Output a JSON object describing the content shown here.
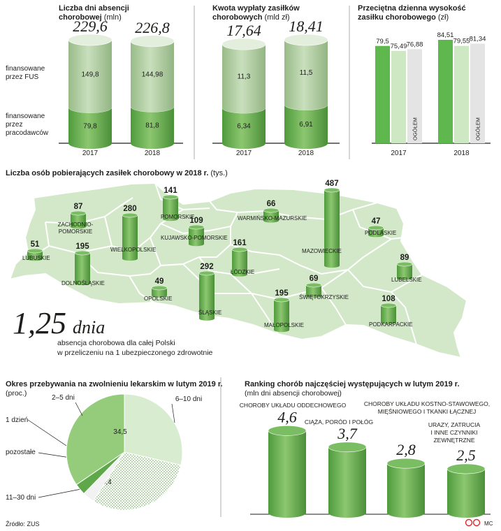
{
  "source": "Źródło: ZUS",
  "credit": "MC",
  "panel_days": {
    "title1": "Liczba dni absencji",
    "title2": "chorobowej",
    "unit": "(mln)",
    "label_fus": [
      "finansowane",
      "przez FUS"
    ],
    "label_employer": [
      "finansowane",
      "przez",
      "pracodawców"
    ]
  },
  "panel_amount": {
    "title1": "Kwota wypłaty zasiłków",
    "title2": "chorobowych",
    "unit": "(mld zł)"
  },
  "panel_daily": {
    "title1": "Przeciętna dzienna wysokość",
    "title2": "zasiłku chorobowego",
    "unit": "(zł)",
    "ogolem": "OGÓŁEM"
  },
  "map_panel": {
    "title": "Liczba osób pobierających zasiłek chorobowy w 2018 r.",
    "unit": "(tys.)",
    "headline_value": "1,25",
    "headline_unit": "dnia",
    "headline_text1": "absencja chorobowa dla całej Polski",
    "headline_text2": "w przeliczeniu na 1 ubezpieczonego zdrowotnie"
  },
  "pie_panel": {
    "title": "Okres przebywania na zwolnieniu lekarskim w lutym 2019 r.",
    "unit": "(proc.)"
  },
  "ranking_panel": {
    "title": "Ranking chorób najczęściej występujących w lutym 2019 r.",
    "unit": "(mln dni absencji chorobowej)"
  },
  "chart_data": [
    {
      "type": "bar",
      "stacked": true,
      "title": "Liczba dni absencji chorobowej (mln)",
      "categories": [
        "2017",
        "2018"
      ],
      "totals": [
        "229,6",
        "226,8"
      ],
      "series": [
        {
          "name": "finansowane przez pracodawców",
          "values": [
            79.8,
            81.8
          ],
          "labels": [
            "79,8",
            "81,8"
          ],
          "color": "#5fa84a"
        },
        {
          "name": "finansowane przez FUS",
          "values": [
            149.8,
            144.98
          ],
          "labels": [
            "149,8",
            "144,98"
          ],
          "color": "#a9c99a"
        }
      ]
    },
    {
      "type": "bar",
      "stacked": true,
      "title": "Kwota wypłaty zasiłków chorobowych (mld zł)",
      "categories": [
        "2017",
        "2018"
      ],
      "totals": [
        "17,64",
        "18,41"
      ],
      "series": [
        {
          "name": "finansowane przez pracodawców",
          "values": [
            6.34,
            6.91
          ],
          "labels": [
            "6,34",
            "6,91"
          ],
          "color": "#5fa84a"
        },
        {
          "name": "finansowane przez FUS",
          "values": [
            11.3,
            11.5
          ],
          "labels": [
            "11,3",
            "11,5"
          ],
          "color": "#a9c99a"
        }
      ]
    },
    {
      "type": "bar",
      "title": "Przeciętna dzienna wysokość zasiłku chorobowego (zł)",
      "categories": [
        "2017",
        "2018"
      ],
      "series": [
        {
          "values": [
            79.5,
            84.51
          ],
          "labels": [
            "79,5",
            "84,51"
          ],
          "color": "#5fb84d"
        },
        {
          "values": [
            75.49,
            79.55
          ],
          "labels": [
            "75,49",
            "79,55"
          ],
          "color": "#cde8c2"
        },
        {
          "name": "OGÓŁEM",
          "values": [
            76.88,
            81.34
          ],
          "labels": [
            "76,88",
            "81,34"
          ],
          "color": "#e4e4e4"
        }
      ]
    },
    {
      "type": "bar",
      "title": "Liczba osób pobierających zasiłek chorobowy w 2018 r. (tys.)",
      "categories": [
        "ZACHODNIO-POMORSKIE",
        "POMORSKIE",
        "WARMIŃSKO-MAZURSKIE",
        "PODLASKIE",
        "LUBUSKIE",
        "WIELKOPOLSKIE",
        "KUJAWSKO-POMORSKIE",
        "MAZOWIECKIE",
        "DOLNOŚLĄSKIE",
        "ŁÓDZKIE",
        "LUBELSKIE",
        "OPOLSKIE",
        "ŚLĄSKIE",
        "ŚWIĘTOKRZYSKIE",
        "MAŁOPOLSKIE",
        "PODKARPACKIE"
      ],
      "values": [
        87,
        141,
        66,
        47,
        51,
        280,
        109,
        487,
        195,
        161,
        89,
        49,
        292,
        69,
        195,
        108
      ]
    },
    {
      "type": "pie",
      "title": "Okres przebywania na zwolnieniu lekarskim w lutym 2019 r. (proc.)",
      "categories": [
        "6–10 dni",
        "11–30 dni",
        "pozostałe",
        "1 dzień",
        "2–5 dni"
      ],
      "values": [
        28.6,
        30.4,
        3.3,
        3.2,
        34.5
      ],
      "labels": [
        "28,6",
        "30,4",
        "3,3",
        "3,2",
        "34,5"
      ]
    },
    {
      "type": "bar",
      "title": "Ranking chorób najczęściej występujących w lutym 2019 r. (mln dni absencji chorobowej)",
      "categories": [
        [
          "CHOROBY UKŁADU ODDECHOWEGO"
        ],
        [
          "CIĄŻA, PORÓD I POŁÓG"
        ],
        [
          "CHOROBY UKŁADU KOSTNO-STAWOWEGO,",
          "MIĘŚNIOWEGO I TKANKI ŁĄCZNEJ"
        ],
        [
          "URAZY, ZATRUCIA",
          "I INNE CZYNNIKI",
          "ZEWNĘTRZNE"
        ]
      ],
      "values": [
        4.6,
        3.7,
        2.8,
        2.5
      ],
      "labels": [
        "4,6",
        "3,7",
        "2,8",
        "2,5"
      ]
    }
  ]
}
